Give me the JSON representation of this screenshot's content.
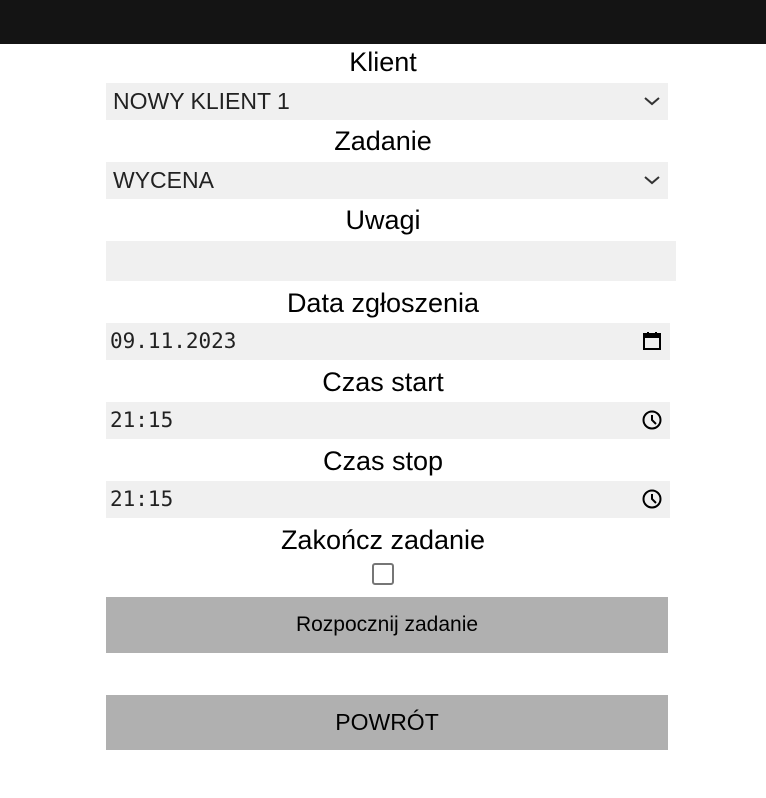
{
  "form": {
    "client": {
      "label": "Klient",
      "value": "NOWY KLIENT 1"
    },
    "task": {
      "label": "Zadanie",
      "value": "WYCENA"
    },
    "notes": {
      "label": "Uwagi",
      "value": ""
    },
    "date": {
      "label": "Data zgłoszenia",
      "value": "09.11.2023"
    },
    "start": {
      "label": "Czas start",
      "value": "21:15"
    },
    "stop": {
      "label": "Czas stop",
      "value": "21:15"
    },
    "finish": {
      "label": "Zakończ zadanie",
      "checked": false
    }
  },
  "buttons": {
    "start": "Rozpocznij zadanie",
    "back": "POWRÓT"
  },
  "colors": {
    "topbar": "#141414",
    "field_bg": "#f0f0f0",
    "button_bg": "#b0b0b0"
  }
}
